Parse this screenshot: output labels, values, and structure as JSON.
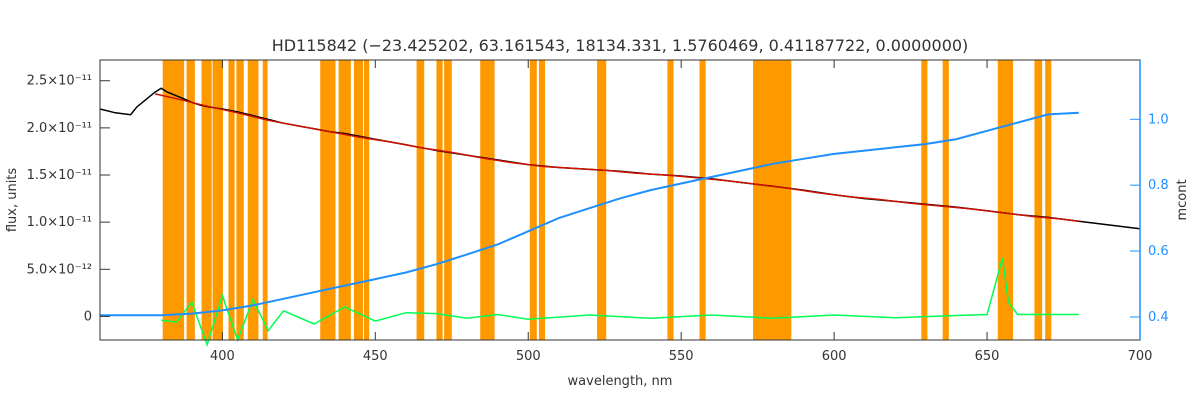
{
  "chart_data": {
    "type": "line",
    "title": "HD115842    (−23.425202, 63.161543, 18134.331, 1.5760469, 0.41187722, 0.0000000)",
    "xlabel": "wavelength, nm",
    "ylabel": "flux, units",
    "y2label": "mcont",
    "xlim": [
      360,
      700
    ],
    "ylim": [
      -2.5e-12,
      2.72e-11
    ],
    "y2lim": [
      0.33,
      1.18
    ],
    "x_ticks": [
      400,
      450,
      500,
      550,
      600,
      650,
      700
    ],
    "y_ticks": [
      {
        "value": 0,
        "label": "0"
      },
      {
        "value": 5e-12,
        "label": "5.0×10⁻¹²"
      },
      {
        "value": 1e-11,
        "label": "1.0×10⁻¹¹"
      },
      {
        "value": 1.5e-11,
        "label": "1.5×10⁻¹¹"
      },
      {
        "value": 2e-11,
        "label": "2.0×10⁻¹¹"
      },
      {
        "value": 2.5e-11,
        "label": "2.5×10⁻¹¹"
      }
    ],
    "y2_ticks": [
      0.4,
      0.6,
      0.8,
      1.0
    ],
    "masked_bands": [
      [
        380.5,
        387.5
      ],
      [
        388.3,
        391.0
      ],
      [
        393.2,
        396.5
      ],
      [
        396.8,
        400.2
      ],
      [
        402.0,
        404.0
      ],
      [
        404.6,
        407.0
      ],
      [
        408.3,
        411.8
      ],
      [
        413.2,
        414.8
      ],
      [
        432.0,
        437.0
      ],
      [
        438.0,
        442.0
      ],
      [
        443.0,
        446.0
      ],
      [
        446.3,
        448.0
      ],
      [
        463.5,
        466.0
      ],
      [
        470.0,
        472.0
      ],
      [
        472.5,
        475.0
      ],
      [
        484.3,
        489.0
      ],
      [
        500.5,
        502.8
      ],
      [
        503.5,
        505.5
      ],
      [
        522.5,
        525.5
      ],
      [
        545.5,
        547.5
      ],
      [
        556.0,
        558.0
      ],
      [
        573.5,
        586.0
      ],
      [
        628.5,
        630.5
      ],
      [
        635.5,
        637.5
      ],
      [
        653.5,
        658.5
      ],
      [
        665.5,
        668.0
      ],
      [
        669.0,
        671.0
      ]
    ],
    "series": [
      {
        "color": "#000000",
        "x": [
          360,
          365,
          370,
          372,
          375,
          378,
          380,
          382,
          385,
          388,
          390,
          393,
          396,
          400,
          405,
          410,
          415,
          420,
          425,
          430,
          435,
          440,
          445,
          450,
          455,
          460,
          465,
          470,
          480,
          490,
          500,
          510,
          520,
          530,
          540,
          550,
          560,
          570,
          580,
          590,
          600,
          610,
          620,
          630,
          640,
          650,
          660,
          670,
          680,
          690,
          700
        ],
        "y": [
          2.2e-11,
          2.16e-11,
          2.14e-11,
          2.22e-11,
          2.3e-11,
          2.38e-11,
          2.42e-11,
          2.38e-11,
          2.34e-11,
          2.3e-11,
          2.27e-11,
          2.24e-11,
          2.22e-11,
          2.2e-11,
          2.17e-11,
          2.13e-11,
          2.09e-11,
          2.05e-11,
          2.02e-11,
          1.99e-11,
          1.96e-11,
          1.94e-11,
          1.91e-11,
          1.88e-11,
          1.85e-11,
          1.82e-11,
          1.79e-11,
          1.76e-11,
          1.71e-11,
          1.66e-11,
          1.61e-11,
          1.58e-11,
          1.56e-11,
          1.54e-11,
          1.51e-11,
          1.49e-11,
          1.46e-11,
          1.42e-11,
          1.38e-11,
          1.34e-11,
          1.29e-11,
          1.25e-11,
          1.22e-11,
          1.19e-11,
          1.16e-11,
          1.12e-11,
          1.08e-11,
          1.05e-11,
          1.01e-11,
          9.7e-12,
          9.3e-12
        ]
      },
      {
        "color": "#cc1100",
        "x": [
          378,
          385,
          395,
          405,
          415,
          425,
          435,
          445,
          455,
          465,
          475,
          485,
          495,
          505,
          515,
          525,
          535,
          545,
          555,
          565,
          575,
          585,
          595,
          605,
          615,
          625,
          635,
          645,
          655,
          665,
          675,
          680
        ],
        "y": [
          2.36e-11,
          2.31e-11,
          2.23e-11,
          2.16e-11,
          2.08e-11,
          2.02e-11,
          1.96e-11,
          1.9e-11,
          1.85e-11,
          1.79e-11,
          1.74e-11,
          1.68e-11,
          1.63e-11,
          1.59e-11,
          1.57e-11,
          1.55e-11,
          1.52e-11,
          1.5e-11,
          1.47e-11,
          1.44e-11,
          1.4e-11,
          1.36e-11,
          1.31e-11,
          1.27e-11,
          1.24e-11,
          1.2e-11,
          1.17e-11,
          1.14e-11,
          1.1e-11,
          1.06e-11,
          1.03e-11,
          1.01e-11
        ]
      },
      {
        "color": "#1f8fff",
        "axis": "y2",
        "x": [
          360,
          380,
          390,
          400,
          410,
          420,
          430,
          440,
          450,
          460,
          470,
          480,
          490,
          500,
          510,
          520,
          530,
          540,
          550,
          560,
          570,
          580,
          590,
          600,
          610,
          620,
          630,
          640,
          650,
          660,
          670,
          680
        ],
        "y": [
          0.405,
          0.405,
          0.41,
          0.42,
          0.435,
          0.455,
          0.475,
          0.495,
          0.515,
          0.535,
          0.56,
          0.59,
          0.62,
          0.66,
          0.7,
          0.73,
          0.76,
          0.785,
          0.805,
          0.825,
          0.845,
          0.865,
          0.88,
          0.895,
          0.905,
          0.915,
          0.925,
          0.94,
          0.965,
          0.99,
          1.015,
          1.02
        ]
      },
      {
        "color": "#00ff55",
        "x": [
          380,
          385,
          390,
          395,
          400,
          405,
          410,
          415,
          420,
          430,
          440,
          450,
          460,
          470,
          480,
          490,
          500,
          520,
          540,
          560,
          580,
          600,
          620,
          640,
          650,
          655,
          657,
          660,
          680
        ],
        "y": [
          -4e-13,
          -6e-13,
          1.5e-12,
          -3e-12,
          2.2e-12,
          -2.5e-12,
          1.8e-12,
          -1.5e-12,
          6e-13,
          -8e-13,
          1e-12,
          -5e-13,
          4e-13,
          3e-13,
          -2e-13,
          2e-13,
          -3e-13,
          1.5e-13,
          -2e-13,
          1.5e-13,
          -2e-13,
          1.5e-13,
          -1.5e-13,
          1e-13,
          2e-13,
          6.2e-12,
          1.5e-12,
          2e-13,
          2e-13
        ]
      }
    ],
    "colors": {
      "mask": "#ff9900",
      "mcont_axis": "#1f8fff",
      "weights": "#00ff55",
      "model": "#cc1100",
      "observed": "#000000",
      "alt": "#ffcc00"
    }
  }
}
